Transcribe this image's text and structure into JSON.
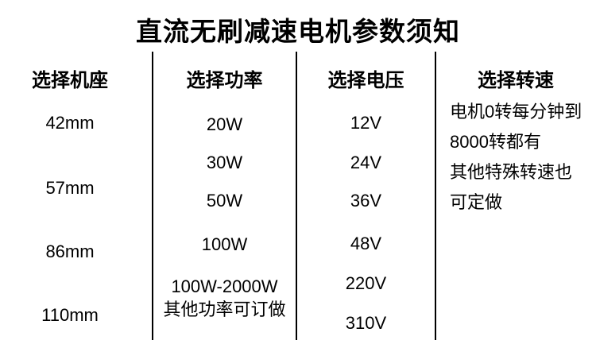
{
  "title": "直流无刷减速电机参数须知",
  "columns": {
    "frame": {
      "header": "选择机座",
      "items": [
        "42mm",
        "57mm",
        "86mm",
        "110mm"
      ]
    },
    "power": {
      "header": "选择功率",
      "items": [
        "20W",
        "30W",
        "50W",
        "100W"
      ],
      "custom_range": "100W-2000W",
      "custom_note": "其他功率可订做"
    },
    "voltage": {
      "header": "选择电压",
      "items": [
        "12V",
        "24V",
        "36V",
        "48V",
        "220V",
        "310V"
      ]
    },
    "speed": {
      "header": "选择转速",
      "lines": [
        "电机0转每分钟到",
        "8000转都有",
        "其他特殊转速也",
        "可定做"
      ]
    }
  },
  "colors": {
    "text": "#000000",
    "background": "#ffffff",
    "divider": "#000000"
  }
}
